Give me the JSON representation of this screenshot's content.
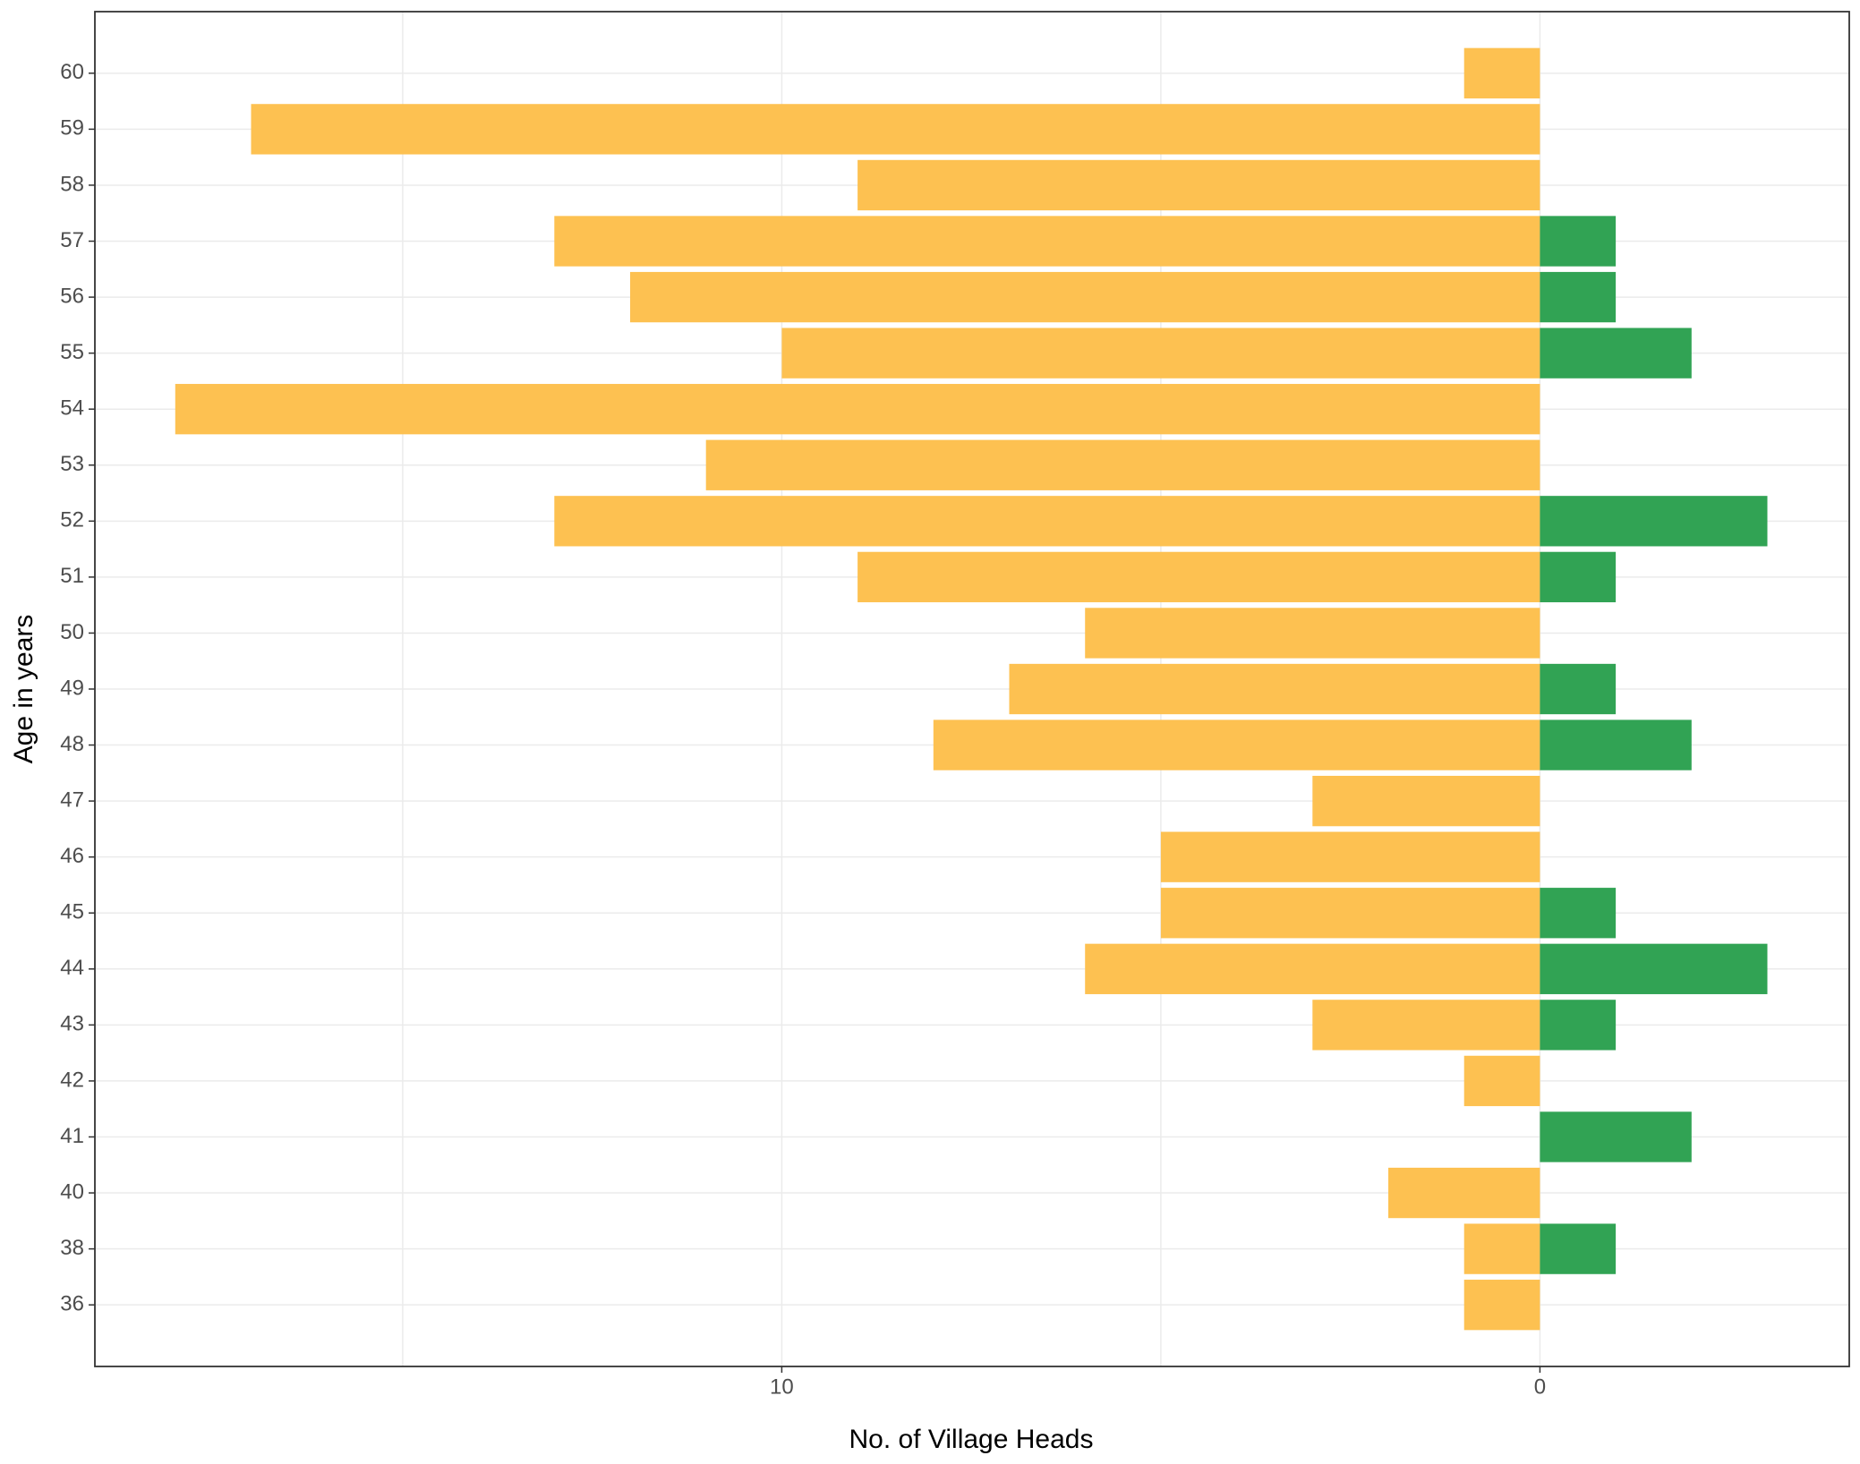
{
  "chart_data": {
    "type": "hbar_diverging",
    "x_label": "No. of Village Heads",
    "y_label": "Age in years",
    "categories": [
      "36",
      "38",
      "40",
      "41",
      "42",
      "43",
      "44",
      "45",
      "46",
      "47",
      "48",
      "49",
      "50",
      "51",
      "52",
      "53",
      "54",
      "55",
      "56",
      "57",
      "58",
      "59",
      "60"
    ],
    "series": [
      {
        "color": "#fdc151",
        "values": [
          -1,
          -1,
          -2,
          0,
          -1,
          -3,
          -6,
          -5,
          -5,
          -3,
          -8,
          -7,
          -6,
          -9,
          -13,
          -11,
          -18,
          -10,
          -12,
          -13,
          -9,
          -17,
          -1
        ]
      },
      {
        "color": "#31a354",
        "values": [
          0,
          1,
          0,
          2,
          0,
          1,
          3,
          1,
          0,
          0,
          2,
          1,
          0,
          1,
          3,
          0,
          0,
          2,
          1,
          1,
          0,
          0,
          0
        ]
      }
    ],
    "xlim": [
      -19.06,
      4.08
    ],
    "xticks": [
      {
        "value": -10,
        "label": "10"
      },
      0
    ],
    "x_gridlines": [
      -15,
      -10,
      -5,
      0
    ],
    "grid": true
  }
}
